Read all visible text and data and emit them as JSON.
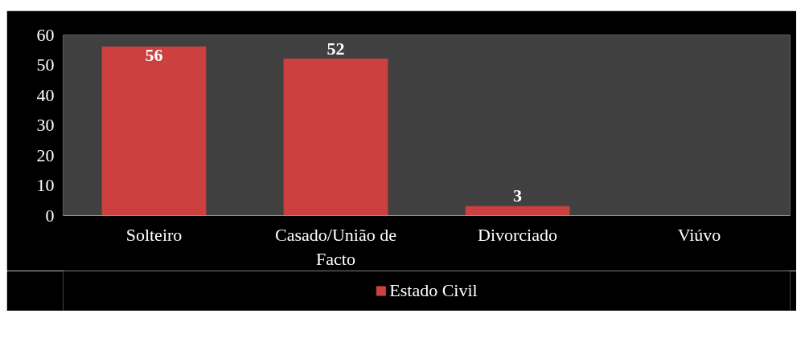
{
  "chart_data": {
    "type": "bar",
    "categories": [
      "Solteiro",
      "Casado/União de Facto",
      "Divorciado",
      "Viúvo"
    ],
    "series": [
      {
        "name": "Estado Civil",
        "color": "#cc4040",
        "values": [
          56,
          52,
          3,
          0
        ],
        "value_labels": [
          "56",
          "52",
          "3",
          null
        ]
      }
    ],
    "ylim": [
      0,
      60
    ],
    "yticks": [
      0,
      10,
      20,
      30,
      40,
      50,
      60
    ],
    "grid": false,
    "legend": "bottom"
  }
}
